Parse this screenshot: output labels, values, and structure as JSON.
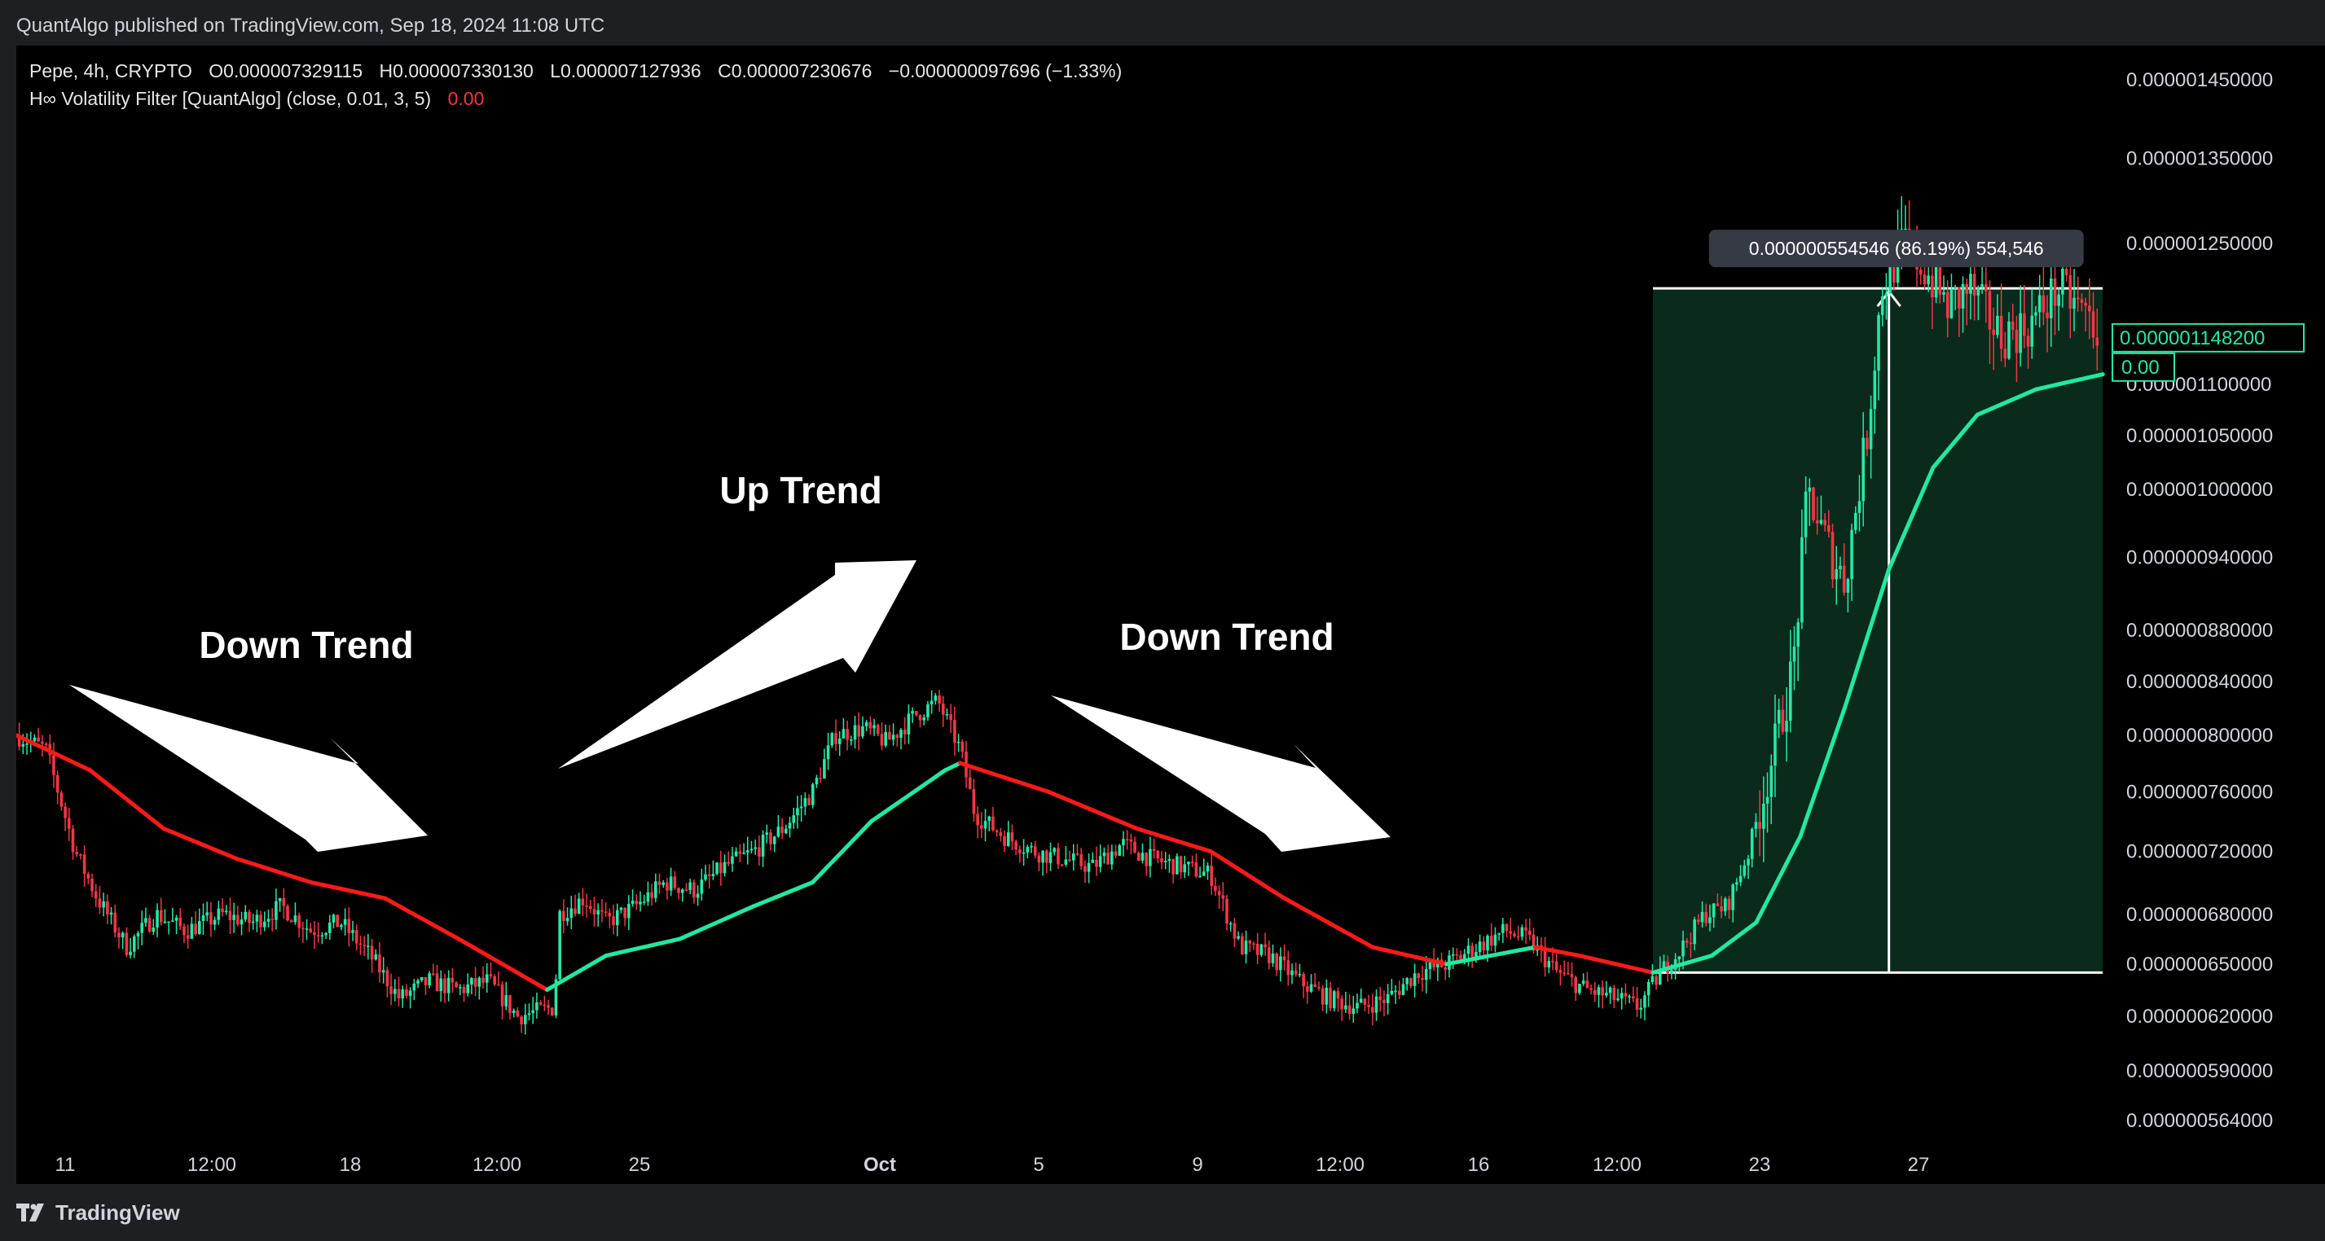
{
  "header": {
    "published": "QuantAlgo published on TradingView.com, Sep 18, 2024 11:08 UTC"
  },
  "legend": {
    "symbol": "Pepe, 4h, CRYPTO",
    "open": "O0.000007329115",
    "high": "H0.000007330130",
    "low": "L0.000007127936",
    "close": "C0.000007230676",
    "change": "−0.000000097696 (−1.33%)",
    "indicator": "H∞ Volatility Filter [QuantAlgo] (close, 0.01, 3, 5)",
    "indicator_value": "0.00"
  },
  "footer": {
    "brand": "TradingView"
  },
  "colors": {
    "up": "#26e8a6",
    "down": "#f23645",
    "filter_down": "#ff1a1a",
    "filter_up": "#22e8a0",
    "range_fill": "#0a2a1c",
    "background": "#000000"
  },
  "chart_data": {
    "type": "candlestick",
    "timeframe": "4h",
    "y_scale": "log",
    "y_ticks": [
      "0.000001450000",
      "0.000001350000",
      "0.000001250000",
      "0.000001100000",
      "0.000001050000",
      "0.000001000000",
      "0.000000940000",
      "0.000000880000",
      "0.000000840000",
      "0.000000800000",
      "0.000000760000",
      "0.000000720000",
      "0.000000680000",
      "0.000000650000",
      "0.000000620000",
      "0.000000590000",
      "0.000000564000"
    ],
    "y_tick_values": [
      1.45e-06,
      1.35e-06,
      1.25e-06,
      1.1e-06,
      1.05e-06,
      1e-06,
      9.4e-07,
      8.8e-07,
      8.4e-07,
      8e-07,
      7.6e-07,
      7.2e-07,
      6.8e-07,
      6.5e-07,
      6.2e-07,
      5.9e-07,
      5.64e-07
    ],
    "x_ticks": [
      "11",
      "12:00",
      "18",
      "12:00",
      "25",
      "Oct",
      "5",
      "9",
      "12:00",
      "16",
      "12:00",
      "23",
      "27"
    ],
    "x_tick_bold": [
      false,
      false,
      false,
      false,
      false,
      true,
      false,
      false,
      false,
      false,
      false,
      false,
      false
    ],
    "price_label": "0.000001148200",
    "indicator_label": "0.00",
    "price_label_value": 1.1482e-06,
    "annotations": [
      {
        "text": "Down Trend"
      },
      {
        "text": "Up Trend"
      },
      {
        "text": "Down Trend"
      }
    ],
    "range_measure": {
      "label": "0.000000554546 (86.19%) 554,546",
      "from_price": 6.45e-07,
      "to_price": 1.2e-06
    },
    "price_path": [
      [
        0,
        8e-07
      ],
      [
        20,
        7.9e-07
      ],
      [
        40,
        7.2e-07
      ],
      [
        55,
        6.9e-07
      ],
      [
        75,
        6.6e-07
      ],
      [
        95,
        6.8e-07
      ],
      [
        115,
        6.7e-07
      ],
      [
        140,
        6.8e-07
      ],
      [
        160,
        6.75e-07
      ],
      [
        180,
        6.85e-07
      ],
      [
        200,
        6.7e-07
      ],
      [
        220,
        6.75e-07
      ],
      [
        240,
        6.55e-07
      ],
      [
        260,
        6.3e-07
      ],
      [
        280,
        6.4e-07
      ],
      [
        300,
        6.35e-07
      ],
      [
        320,
        6.4e-07
      ],
      [
        340,
        6.2e-07
      ],
      [
        365,
        6.25e-07
      ],
      [
        368,
        6.8e-07
      ],
      [
        385,
        6.9e-07
      ],
      [
        400,
        6.75e-07
      ],
      [
        420,
        6.85e-07
      ],
      [
        440,
        7e-07
      ],
      [
        460,
        6.95e-07
      ],
      [
        480,
        7.1e-07
      ],
      [
        500,
        7.2e-07
      ],
      [
        520,
        7.35e-07
      ],
      [
        540,
        7.6e-07
      ],
      [
        555,
        8e-07
      ],
      [
        575,
        8.05e-07
      ],
      [
        590,
        7.95e-07
      ],
      [
        610,
        8.15e-07
      ],
      [
        625,
        8.25e-07
      ],
      [
        640,
        7.9e-07
      ],
      [
        650,
        7.45e-07
      ],
      [
        670,
        7.3e-07
      ],
      [
        690,
        7.2e-07
      ],
      [
        710,
        7.15e-07
      ],
      [
        730,
        7.1e-07
      ],
      [
        750,
        7.25e-07
      ],
      [
        770,
        7.15e-07
      ],
      [
        790,
        7.1e-07
      ],
      [
        810,
        7.05e-07
      ],
      [
        830,
        6.6e-07
      ],
      [
        850,
        6.55e-07
      ],
      [
        870,
        6.4e-07
      ],
      [
        890,
        6.3e-07
      ],
      [
        910,
        6.25e-07
      ],
      [
        930,
        6.3e-07
      ],
      [
        950,
        6.45e-07
      ],
      [
        970,
        6.5e-07
      ],
      [
        990,
        6.6e-07
      ],
      [
        1010,
        6.7e-07
      ],
      [
        1025,
        6.65e-07
      ],
      [
        1045,
        6.45e-07
      ],
      [
        1065,
        6.35e-07
      ],
      [
        1085,
        6.3e-07
      ],
      [
        1100,
        6.25e-07
      ],
      [
        1115,
        6.45e-07
      ],
      [
        1130,
        6.6e-07
      ],
      [
        1145,
        6.8e-07
      ],
      [
        1160,
        6.85e-07
      ],
      [
        1175,
        7.2e-07
      ],
      [
        1190,
        7.8e-07
      ],
      [
        1205,
        8.5e-07
      ],
      [
        1215,
        1e-06
      ],
      [
        1225,
        9.6e-07
      ],
      [
        1240,
        9.2e-07
      ],
      [
        1255,
        1.05e-06
      ],
      [
        1265,
        1.2e-06
      ],
      [
        1280,
        1.25e-06
      ],
      [
        1295,
        1.22e-06
      ],
      [
        1310,
        1.18e-06
      ],
      [
        1325,
        1.2e-06
      ],
      [
        1345,
        1.15e-06
      ],
      [
        1365,
        1.16e-06
      ],
      [
        1385,
        1.2e-06
      ],
      [
        1405,
        1.17e-06
      ],
      [
        1415,
        1.148e-06
      ]
    ],
    "filter_line": [
      [
        0,
        8e-07
      ],
      [
        50,
        7.75e-07
      ],
      [
        100,
        7.35e-07
      ],
      [
        150,
        7.15e-07
      ],
      [
        200,
        7e-07
      ],
      [
        250,
        6.9e-07
      ],
      [
        300,
        6.65e-07
      ],
      [
        360,
        6.35e-07
      ],
      [
        400,
        6.55e-07
      ],
      [
        450,
        6.65e-07
      ],
      [
        500,
        6.85e-07
      ],
      [
        540,
        7e-07
      ],
      [
        580,
        7.4e-07
      ],
      [
        630,
        7.75e-07
      ],
      [
        640,
        7.8e-07
      ],
      [
        700,
        7.6e-07
      ],
      [
        760,
        7.35e-07
      ],
      [
        810,
        7.2e-07
      ],
      [
        860,
        6.9e-07
      ],
      [
        920,
        6.6e-07
      ],
      [
        970,
        6.5e-07
      ],
      [
        1000,
        6.55e-07
      ],
      [
        1030,
        6.6e-07
      ],
      [
        1060,
        6.55e-07
      ],
      [
        1110,
        6.45e-07
      ],
      [
        1150,
        6.55e-07
      ],
      [
        1180,
        6.75e-07
      ],
      [
        1210,
        7.3e-07
      ],
      [
        1240,
        8.2e-07
      ],
      [
        1270,
        9.3e-07
      ],
      [
        1300,
        1.02e-06
      ],
      [
        1330,
        1.07e-06
      ],
      [
        1370,
        1.095e-06
      ],
      [
        1415,
        1.11e-06
      ]
    ]
  }
}
